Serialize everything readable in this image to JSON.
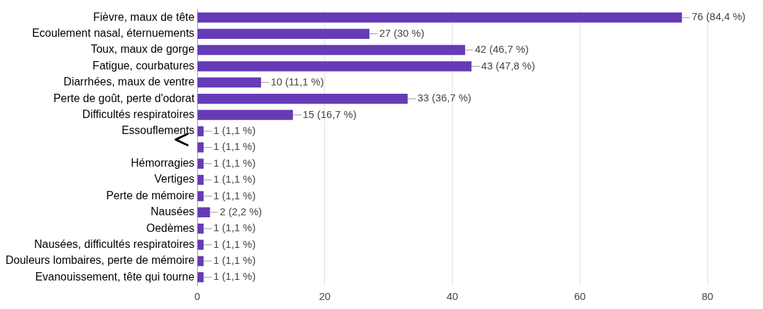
{
  "chart_data": {
    "type": "bar",
    "orientation": "horizontal",
    "categories": [
      "Fièvre, maux de tête",
      "Ecoulement nasal, éternuements",
      "Toux, maux de gorge",
      "Fatigue, courbatures",
      "Diarrhées, maux de ventre",
      "Perte de goût, perte d'odorat",
      "Difficultés respiratoires",
      "Essouflements",
      null,
      "Hémorragies",
      "Vertiges",
      "Perte de mémoire",
      "Nausées",
      "Oedèmes",
      "Nausées, difficultés respiratoires",
      "Douleurs lombaires, perte de mémoire",
      "Evanouissement, tête qui tourne"
    ],
    "values": [
      76,
      27,
      42,
      43,
      10,
      33,
      15,
      1,
      1,
      1,
      1,
      1,
      2,
      1,
      1,
      1,
      1
    ],
    "value_labels": [
      "76 (84,4 %)",
      "27 (30 %)",
      "42 (46,7 %)",
      "43 (47,8 %)",
      "10 (11,1 %)",
      "33 (36,7 %)",
      "15 (16,7 %)",
      "1 (1,1 %)",
      "1 (1,1 %)",
      "1 (1,1 %)",
      "1 (1,1 %)",
      "1 (1,1 %)",
      "2 (2,2 %)",
      "1 (1,1 %)",
      "1 (1,1 %)",
      "1 (1,1 %)",
      "1 (1,1 %)"
    ],
    "color": "#673ab7",
    "xlim": [
      0,
      80
    ],
    "xticks": [
      0,
      20,
      40,
      60,
      80
    ],
    "grid": "x",
    "legend": false
  }
}
